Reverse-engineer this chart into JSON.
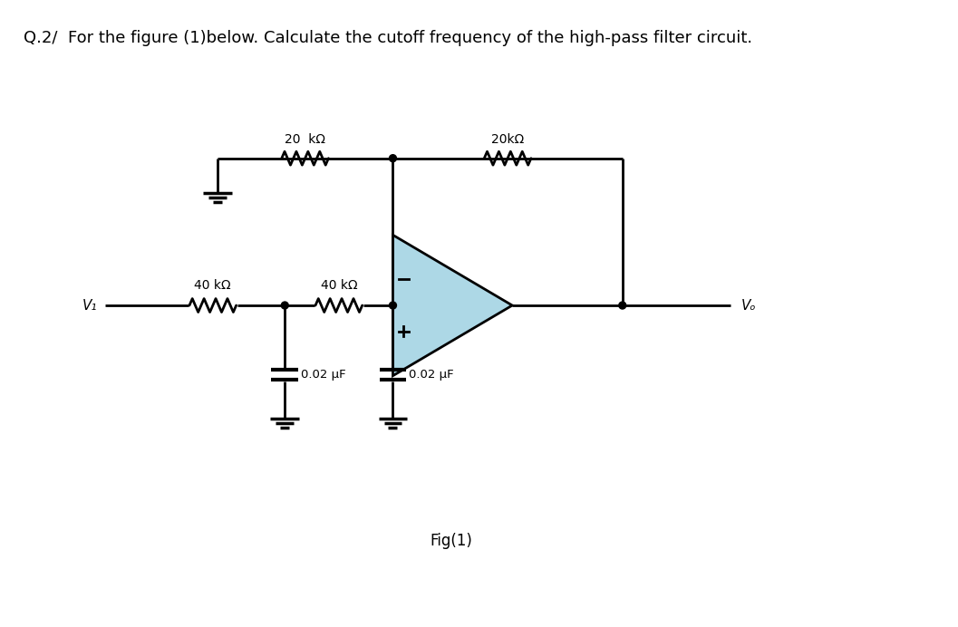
{
  "title": "Q.2/  For the figure (1)below. Calculate the cutoff frequency of the high-pass filter circuit.",
  "fig_label": "Fig(1)",
  "background_color": "#ffffff",
  "line_color": "#000000",
  "op_amp_fill": "#add8e6",
  "title_fontsize": 13,
  "label_fontsize": 10,
  "component_labels": {
    "R1_top": "20  kΩ",
    "R2_top": "20kΩ",
    "R3_bot": "40 kΩ",
    "R4_bot": "40 kΩ",
    "C1": "0.02 µF",
    "C2": "0.02 µF",
    "Vi": "V₁",
    "Vo": "Vₒ"
  },
  "layout": {
    "figsize": [
      10.57,
      6.92
    ],
    "dpi": 100,
    "xlim": [
      0,
      10.57
    ],
    "ylim": [
      0,
      6.92
    ]
  }
}
